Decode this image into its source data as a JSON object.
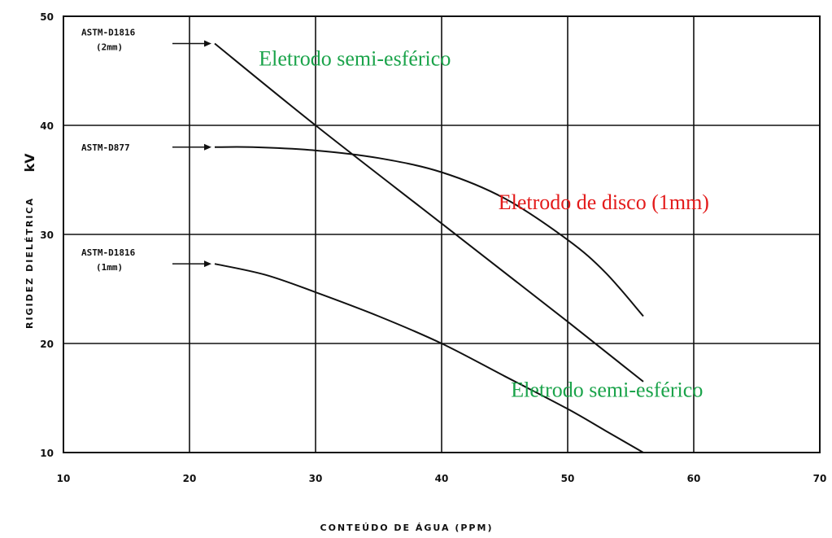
{
  "chart_data": {
    "type": "line",
    "title": "",
    "xlabel": "CONTEÚDO DE ÁGUA (PPM)",
    "ylabel_main": "RIGIDEZ  DIELÉTRICA",
    "ylabel_unit": "kV",
    "xlim": [
      10,
      70
    ],
    "ylim": [
      10,
      50
    ],
    "xticks": [
      "10",
      "20",
      "30",
      "40",
      "50",
      "60",
      "70"
    ],
    "yticks": [
      "10",
      "20",
      "30",
      "40",
      "50"
    ],
    "grid": true,
    "series": [
      {
        "name": "ASTM-D1816 (2mm)",
        "label_lines": [
          "ASTM-D1816",
          "(2mm)"
        ],
        "x": [
          22,
          30,
          40,
          50,
          56
        ],
        "y": [
          47.5,
          40,
          31,
          22,
          16.5
        ]
      },
      {
        "name": "ASTM-D877",
        "label_lines": [
          "ASTM-D877"
        ],
        "x": [
          22,
          25,
          30,
          35,
          40,
          45,
          50,
          53,
          56
        ],
        "y": [
          38,
          38,
          37.7,
          37,
          35.7,
          33.3,
          29.5,
          26.5,
          22.5
        ]
      },
      {
        "name": "ASTM-D1816 (1mm)",
        "label_lines": [
          "ASTM-D1816",
          "(1mm)"
        ],
        "x": [
          22,
          26,
          30,
          35,
          40,
          45,
          50,
          53,
          56
        ],
        "y": [
          27.3,
          26.3,
          24.7,
          22.5,
          20,
          17,
          14,
          12,
          10
        ]
      }
    ],
    "annotations": [
      {
        "text": "Eletrodo semi-esférico",
        "color": "#1aa34a",
        "x": 25.5,
        "y": 45.5
      },
      {
        "text": "Eletrodo de disco (1mm)",
        "color": "#e31b1b",
        "x": 44.5,
        "y": 32.3
      },
      {
        "text": "Eletrodo semi-esférico",
        "color": "#1aa34a",
        "x": 45.5,
        "y": 15.1
      }
    ]
  }
}
